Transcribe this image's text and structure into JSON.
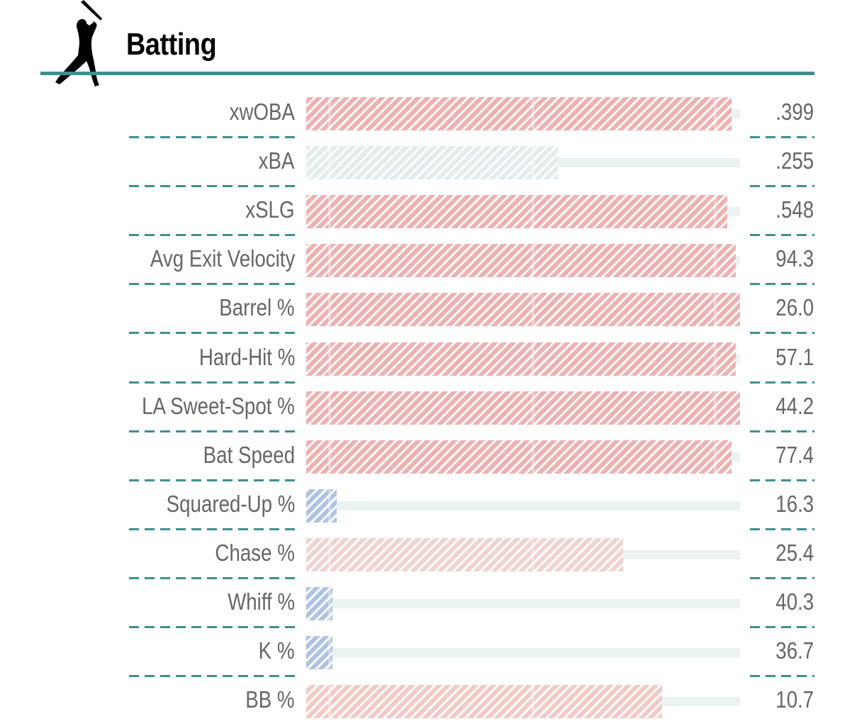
{
  "header": {
    "title": "Batting",
    "icon": "batter-silhouette-icon"
  },
  "colors": {
    "accent": "#3f8f8f",
    "track": "#ebf2f2",
    "label": "#666666"
  },
  "chart_data": {
    "type": "bar",
    "title": "Batting",
    "orientation": "horizontal",
    "value_axis": "percentile",
    "xlim": [
      0,
      100
    ],
    "rows": [
      {
        "label": "xwOBA",
        "value": ".399",
        "percentile": 98,
        "color": "#eeb1b1"
      },
      {
        "label": "xBA",
        "value": ".255",
        "percentile": 58,
        "color": "#e3ecec"
      },
      {
        "label": "xSLG",
        "value": ".548",
        "percentile": 97,
        "color": "#eeb1b1"
      },
      {
        "label": "Avg Exit Velocity",
        "value": "94.3",
        "percentile": 99,
        "color": "#eeb1b1"
      },
      {
        "label": "Barrel %",
        "value": "26.0",
        "percentile": 100,
        "color": "#eeb1b1"
      },
      {
        "label": "Hard-Hit %",
        "value": "57.1",
        "percentile": 99,
        "color": "#eeb1b1"
      },
      {
        "label": "LA Sweet-Spot %",
        "value": "44.2",
        "percentile": 100,
        "color": "#eeb1b1"
      },
      {
        "label": "Bat Speed",
        "value": "77.4",
        "percentile": 98,
        "color": "#eeb1b1"
      },
      {
        "label": "Squared-Up %",
        "value": "16.3",
        "percentile": 7,
        "color": "#afc2e2"
      },
      {
        "label": "Chase %",
        "value": "25.4",
        "percentile": 73,
        "color": "#efd3d0"
      },
      {
        "label": "Whiff %",
        "value": "40.3",
        "percentile": 6,
        "color": "#afc2e2"
      },
      {
        "label": "K %",
        "value": "36.7",
        "percentile": 6,
        "color": "#afc2e2"
      },
      {
        "label": "BB %",
        "value": "10.7",
        "percentile": 82,
        "color": "#f1cac6"
      }
    ]
  }
}
